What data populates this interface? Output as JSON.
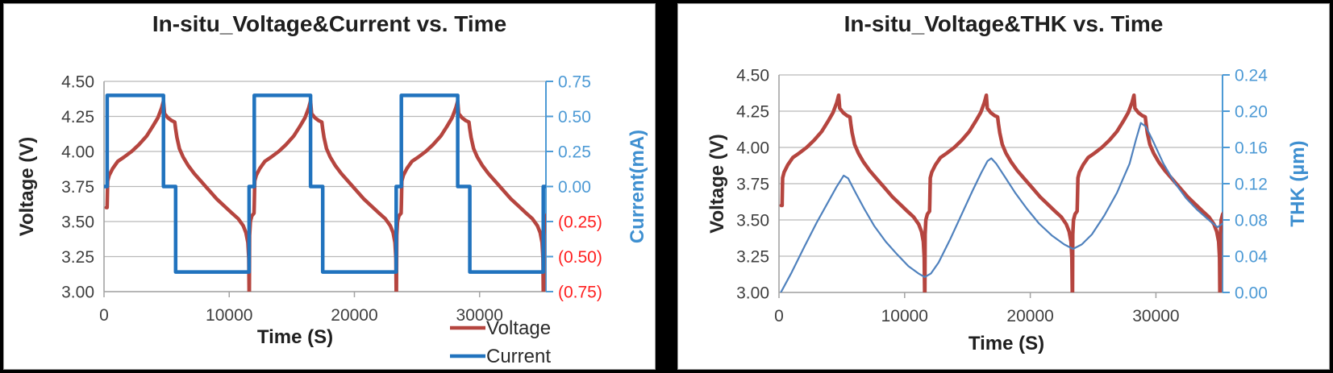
{
  "frame": {
    "background": "#000000",
    "panel_background": "#ffffff"
  },
  "chart_data": [
    {
      "type": "line",
      "title": "In-situ_Voltage&Current vs. Time",
      "xlabel": "Time (S)",
      "x_ticks": [
        0,
        10000,
        20000,
        30000
      ],
      "xmin": 0,
      "xmax": 35300,
      "grid": "horizontal",
      "axes": {
        "left": {
          "label": "Voltage (V)",
          "min": 3.0,
          "max": 4.5,
          "ticks": [
            "4.50",
            "4.25",
            "4.00",
            "3.75",
            "3.50",
            "3.25",
            "3.00"
          ],
          "text_color": "#3f3f3f",
          "title_color": "#262626",
          "line_color": "#a3a3a3"
        },
        "right": {
          "label": "Current(mA)",
          "min": -0.75,
          "max": 0.75,
          "ticks": [
            "0.75",
            "0.50",
            "0.25",
            "0.00",
            "(0.25)",
            "(0.50)",
            "(0.75)"
          ],
          "text_color": "#4d9ad5",
          "negative_text_color": "#ff1f1f",
          "title_color": "#3e8fd0",
          "line_color": "#4d9ad5"
        }
      },
      "series": [
        {
          "name": "Voltage",
          "axis": "left",
          "color": "#b5453f",
          "width": 4.5,
          "data": "voltage"
        },
        {
          "name": "Current",
          "axis": "right",
          "color": "#2173be",
          "width": 4.5,
          "data": "current"
        }
      ],
      "legend": {
        "position": "bottom-right",
        "entries": [
          {
            "label": "Voltage",
            "color": "#b5453f"
          },
          {
            "label": "Current",
            "color": "#2173be"
          }
        ]
      }
    },
    {
      "type": "line",
      "title": "In-situ_Voltage&THK vs. Time",
      "xlabel": "Time (S)",
      "x_ticks": [
        0,
        10000,
        20000,
        30000
      ],
      "xmin": 0,
      "xmax": 35300,
      "grid": "horizontal",
      "axes": {
        "left": {
          "label": "Voltage (V)",
          "min": 3.0,
          "max": 4.5,
          "ticks": [
            "4.50",
            "4.25",
            "4.00",
            "3.75",
            "3.50",
            "3.25",
            "3.00"
          ],
          "text_color": "#3f3f3f",
          "title_color": "#262626",
          "line_color": "#a3a3a3"
        },
        "right": {
          "label": "THK (µm)",
          "min": 0.0,
          "max": 0.24,
          "ticks": [
            "0.24",
            "0.20",
            "0.16",
            "0.12",
            "0.08",
            "0.04",
            "0.00"
          ],
          "text_color": "#4d9ad5",
          "negative_text_color": "#ff1f1f",
          "title_color": "#3e8fd0",
          "line_color": "#4d9ad5"
        }
      },
      "series": [
        {
          "name": "Voltage",
          "axis": "left",
          "color": "#b5453f",
          "width": 4.5,
          "data": "voltage"
        },
        {
          "name": "THK",
          "axis": "right",
          "color": "#4f81bd",
          "width": 2.2,
          "data": "thk"
        }
      ],
      "legend": null
    }
  ],
  "series_data": {
    "voltage": [
      [
        180,
        3.6
      ],
      [
        248,
        3.6
      ],
      [
        250,
        3.62
      ],
      [
        290,
        3.79
      ],
      [
        410,
        3.83
      ],
      [
        700,
        3.88
      ],
      [
        1100,
        3.93
      ],
      [
        1600,
        3.96
      ],
      [
        2200,
        4.0
      ],
      [
        2800,
        4.05
      ],
      [
        3400,
        4.11
      ],
      [
        3900,
        4.18
      ],
      [
        4300,
        4.24
      ],
      [
        4600,
        4.31
      ],
      [
        4750,
        4.36
      ],
      [
        4830,
        4.27
      ],
      [
        5100,
        4.24
      ],
      [
        5400,
        4.22
      ],
      [
        5650,
        4.21
      ],
      [
        5720,
        4.16
      ],
      [
        5820,
        4.1
      ],
      [
        6020,
        4.02
      ],
      [
        6320,
        3.96
      ],
      [
        6720,
        3.9
      ],
      [
        7220,
        3.84
      ],
      [
        7820,
        3.78
      ],
      [
        8420,
        3.72
      ],
      [
        9020,
        3.66
      ],
      [
        9620,
        3.61
      ],
      [
        10220,
        3.56
      ],
      [
        10720,
        3.52
      ],
      [
        11120,
        3.47
      ],
      [
        11340,
        3.42
      ],
      [
        11490,
        3.35
      ],
      [
        11560,
        3.24
      ],
      [
        11590,
        3.0
      ],
      [
        11610,
        3.0
      ],
      [
        11630,
        3.4
      ],
      [
        11690,
        3.5
      ],
      [
        11810,
        3.54
      ],
      [
        11980,
        3.56
      ],
      [
        12000,
        3.62
      ],
      [
        12040,
        3.79
      ],
      [
        12160,
        3.83
      ],
      [
        12450,
        3.88
      ],
      [
        12850,
        3.93
      ],
      [
        13350,
        3.96
      ],
      [
        13950,
        4.0
      ],
      [
        14550,
        4.05
      ],
      [
        15150,
        4.11
      ],
      [
        15650,
        4.18
      ],
      [
        16050,
        4.24
      ],
      [
        16350,
        4.31
      ],
      [
        16500,
        4.36
      ],
      [
        16580,
        4.27
      ],
      [
        16850,
        4.24
      ],
      [
        17150,
        4.22
      ],
      [
        17400,
        4.21
      ],
      [
        17470,
        4.16
      ],
      [
        17570,
        4.1
      ],
      [
        17770,
        4.02
      ],
      [
        18070,
        3.96
      ],
      [
        18470,
        3.9
      ],
      [
        18970,
        3.84
      ],
      [
        19570,
        3.78
      ],
      [
        20170,
        3.72
      ],
      [
        20770,
        3.66
      ],
      [
        21370,
        3.61
      ],
      [
        21970,
        3.56
      ],
      [
        22470,
        3.52
      ],
      [
        22870,
        3.47
      ],
      [
        23090,
        3.42
      ],
      [
        23240,
        3.35
      ],
      [
        23310,
        3.24
      ],
      [
        23340,
        3.0
      ],
      [
        23360,
        3.0
      ],
      [
        23380,
        3.4
      ],
      [
        23440,
        3.5
      ],
      [
        23560,
        3.54
      ],
      [
        23730,
        3.56
      ],
      [
        23750,
        3.62
      ],
      [
        23790,
        3.79
      ],
      [
        23910,
        3.83
      ],
      [
        24200,
        3.88
      ],
      [
        24600,
        3.93
      ],
      [
        25100,
        3.96
      ],
      [
        25700,
        4.0
      ],
      [
        26300,
        4.05
      ],
      [
        26900,
        4.11
      ],
      [
        27400,
        4.18
      ],
      [
        27800,
        4.24
      ],
      [
        28100,
        4.31
      ],
      [
        28250,
        4.36
      ],
      [
        28330,
        4.27
      ],
      [
        28600,
        4.24
      ],
      [
        28900,
        4.22
      ],
      [
        29150,
        4.21
      ],
      [
        29220,
        4.16
      ],
      [
        29320,
        4.1
      ],
      [
        29520,
        4.02
      ],
      [
        29820,
        3.96
      ],
      [
        30220,
        3.9
      ],
      [
        30720,
        3.84
      ],
      [
        31320,
        3.78
      ],
      [
        31920,
        3.72
      ],
      [
        32520,
        3.66
      ],
      [
        33120,
        3.61
      ],
      [
        33720,
        3.56
      ],
      [
        34220,
        3.52
      ],
      [
        34620,
        3.47
      ],
      [
        34840,
        3.42
      ],
      [
        34990,
        3.35
      ],
      [
        35060,
        3.24
      ],
      [
        35090,
        3.0
      ],
      [
        35110,
        3.0
      ],
      [
        35130,
        3.4
      ],
      [
        35190,
        3.5
      ],
      [
        35310,
        3.54
      ],
      [
        35480,
        3.56
      ]
    ],
    "current": [
      [
        0,
        0
      ],
      [
        250,
        0
      ],
      [
        250,
        0.65
      ],
      [
        4750,
        0.65
      ],
      [
        4750,
        0
      ],
      [
        5720,
        0
      ],
      [
        5720,
        -0.61
      ],
      [
        11590,
        -0.61
      ],
      [
        11590,
        0
      ],
      [
        12000,
        0
      ],
      [
        12000,
        0.65
      ],
      [
        16500,
        0.65
      ],
      [
        16500,
        0
      ],
      [
        17470,
        0
      ],
      [
        17470,
        -0.61
      ],
      [
        23340,
        -0.61
      ],
      [
        23340,
        0
      ],
      [
        23750,
        0
      ],
      [
        23750,
        0.65
      ],
      [
        28250,
        0.65
      ],
      [
        28250,
        0
      ],
      [
        29220,
        0
      ],
      [
        29220,
        -0.61
      ],
      [
        35090,
        -0.61
      ],
      [
        35090,
        0
      ],
      [
        35500,
        0
      ]
    ],
    "thk": [
      [
        150,
        0.0
      ],
      [
        1000,
        0.022
      ],
      [
        2000,
        0.05
      ],
      [
        3000,
        0.077
      ],
      [
        4000,
        0.102
      ],
      [
        4600,
        0.117
      ],
      [
        5150,
        0.129
      ],
      [
        5500,
        0.126
      ],
      [
        6100,
        0.11
      ],
      [
        6800,
        0.092
      ],
      [
        7600,
        0.073
      ],
      [
        8500,
        0.056
      ],
      [
        9400,
        0.042
      ],
      [
        10300,
        0.029
      ],
      [
        11100,
        0.021
      ],
      [
        11600,
        0.017
      ],
      [
        12100,
        0.021
      ],
      [
        12700,
        0.033
      ],
      [
        13600,
        0.058
      ],
      [
        14500,
        0.085
      ],
      [
        15400,
        0.112
      ],
      [
        16100,
        0.132
      ],
      [
        16600,
        0.145
      ],
      [
        16900,
        0.148
      ],
      [
        17300,
        0.142
      ],
      [
        18000,
        0.127
      ],
      [
        18800,
        0.11
      ],
      [
        19700,
        0.093
      ],
      [
        20700,
        0.076
      ],
      [
        21700,
        0.063
      ],
      [
        22700,
        0.053
      ],
      [
        23400,
        0.048
      ],
      [
        24100,
        0.053
      ],
      [
        24900,
        0.064
      ],
      [
        25900,
        0.085
      ],
      [
        26900,
        0.11
      ],
      [
        27900,
        0.142
      ],
      [
        28400,
        0.168
      ],
      [
        28800,
        0.187
      ],
      [
        29200,
        0.183
      ],
      [
        29800,
        0.166
      ],
      [
        30600,
        0.142
      ],
      [
        31500,
        0.121
      ],
      [
        32400,
        0.104
      ],
      [
        33300,
        0.091
      ],
      [
        34200,
        0.08
      ],
      [
        34900,
        0.072
      ],
      [
        35400,
        0.077
      ]
    ]
  }
}
